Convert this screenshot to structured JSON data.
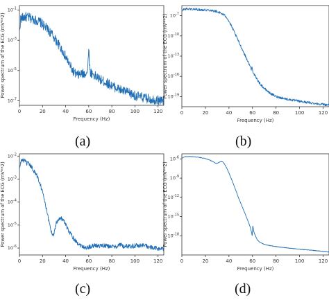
{
  "chart_data": [
    {
      "type": "line",
      "panel_label": "(a)",
      "ylabel": "Power spectrum of the ECG (mV**2)",
      "xlabel": "Frequency (Hz)",
      "xlim": [
        0,
        125
      ],
      "ylog": true,
      "ylim_log10": [
        -7.3,
        -0.7
      ],
      "xticks": [
        0,
        20,
        40,
        60,
        80,
        100,
        120
      ],
      "xtick_labels": [
        "0",
        "20",
        "40",
        "60",
        "80",
        "100",
        "120"
      ],
      "yticks_log10": [
        -1,
        -3,
        -5,
        -7
      ],
      "ytick_labels": [
        "10^-1",
        "10^-3",
        "10^-5",
        "10^-7"
      ],
      "line_color": "#1f6db5",
      "noise": 0.32,
      "series": [
        {
          "x": [
            0,
            1,
            3,
            5,
            8,
            12,
            15,
            18,
            22,
            26,
            30,
            34,
            38,
            42,
            46,
            48,
            50,
            53,
            56,
            58,
            59,
            59.6,
            60,
            60.4,
            61,
            63,
            66,
            70,
            75,
            80,
            85,
            90,
            95,
            100,
            105,
            110,
            115,
            120,
            125
          ],
          "y_log10": [
            -2.5,
            -1.6,
            -1.5,
            -1.45,
            -1.5,
            -1.6,
            -1.7,
            -1.8,
            -2.1,
            -2.4,
            -2.8,
            -3.3,
            -3.8,
            -4.4,
            -5.0,
            -5.2,
            -5.3,
            -5.25,
            -5.2,
            -5.15,
            -5.1,
            -4.0,
            -3.4,
            -4.2,
            -5.1,
            -5.2,
            -5.4,
            -5.6,
            -5.8,
            -6.0,
            -6.2,
            -6.35,
            -6.5,
            -6.65,
            -6.75,
            -6.85,
            -6.9,
            -6.95,
            -7.0
          ]
        }
      ]
    },
    {
      "type": "line",
      "panel_label": "(b)",
      "ylabel": "Power spectrum of the ECG (mV**2)",
      "xlabel": "Frequency (Hz)",
      "xlim": [
        0,
        125
      ],
      "ylog": true,
      "ylim_log10": [
        -20.5,
        -5.5
      ],
      "xticks": [
        0,
        20,
        40,
        60,
        80,
        100,
        120
      ],
      "xtick_labels": [
        "0",
        "20",
        "40",
        "60",
        "80",
        "100",
        "120"
      ],
      "yticks_log10": [
        -7,
        -10,
        -13,
        -16,
        -19
      ],
      "ytick_labels": [
        "10^-7",
        "10^-10",
        "10^-13",
        "10^-16",
        "10^-19"
      ],
      "line_color": "#1f6db5",
      "noise": 0.18,
      "series": [
        {
          "x": [
            0,
            1,
            3,
            5,
            10,
            15,
            20,
            25,
            30,
            35,
            38,
            42,
            46,
            50,
            54,
            58,
            59,
            59.8,
            60.3,
            61,
            63,
            66,
            70,
            75,
            80,
            90,
            100,
            110,
            120,
            125
          ],
          "y_log10": [
            -6.5,
            -6.1,
            -6.0,
            -6.0,
            -6.05,
            -6.1,
            -6.15,
            -6.2,
            -6.4,
            -6.8,
            -7.2,
            -8.5,
            -10.0,
            -11.5,
            -13.0,
            -14.5,
            -15.0,
            -14.5,
            -15.3,
            -15.6,
            -16.2,
            -17.0,
            -17.8,
            -18.5,
            -19.0,
            -19.4,
            -19.7,
            -19.95,
            -20.15,
            -20.25
          ]
        }
      ]
    },
    {
      "type": "line",
      "panel_label": "(c)",
      "ylabel": "Power spectrum of the ECG (mV**2)",
      "xlabel": "Frequency (Hz)",
      "xlim": [
        0,
        125
      ],
      "ylog": true,
      "ylim_log10": [
        -6.3,
        -1.9
      ],
      "xticks": [
        0,
        20,
        40,
        60,
        80,
        100,
        120
      ],
      "xtick_labels": [
        "0",
        "20",
        "40",
        "60",
        "80",
        "100",
        "120"
      ],
      "yticks_log10": [
        -2,
        -3,
        -4,
        -5,
        -6
      ],
      "ytick_labels": [
        "10^-2",
        "10^-3",
        "10^-4",
        "10^-5",
        "10^-6"
      ],
      "line_color": "#1f6db5",
      "noise": 0.1,
      "series": [
        {
          "x": [
            0,
            1,
            2,
            4,
            6,
            8,
            10,
            12,
            14,
            16,
            18,
            20,
            22,
            24,
            26,
            27,
            28,
            29,
            30,
            31,
            32,
            34,
            36,
            38,
            40,
            44,
            48,
            52,
            56,
            58,
            62,
            66,
            70,
            74,
            78,
            82,
            86,
            88,
            90,
            92,
            96,
            100,
            104,
            108,
            112,
            116,
            120,
            125
          ],
          "y_log10": [
            -2.6,
            -2.3,
            -2.15,
            -2.2,
            -2.3,
            -2.35,
            -2.45,
            -2.6,
            -2.75,
            -2.95,
            -3.2,
            -3.55,
            -4.0,
            -4.5,
            -4.9,
            -5.15,
            -5.35,
            -5.45,
            -5.35,
            -5.1,
            -4.9,
            -4.72,
            -4.7,
            -4.8,
            -5.0,
            -5.35,
            -5.65,
            -5.85,
            -5.95,
            -6.0,
            -5.92,
            -5.88,
            -5.9,
            -5.9,
            -5.92,
            -5.95,
            -5.88,
            -5.85,
            -5.95,
            -5.92,
            -5.92,
            -5.9,
            -5.88,
            -5.88,
            -5.95,
            -6.0,
            -6.02,
            -6.05
          ]
        }
      ]
    },
    {
      "type": "line",
      "panel_label": "(d)",
      "ylabel": "Power spectrum of the ECG (mV**2)",
      "xlabel": "Frequency (Hz)",
      "xlim": [
        0,
        125
      ],
      "ylog": true,
      "ylim_log10": [
        -21.0,
        -5.2
      ],
      "xticks": [
        0,
        20,
        40,
        60,
        80,
        100,
        120
      ],
      "xtick_labels": [
        "0",
        "20",
        "40",
        "60",
        "80",
        "100",
        "120"
      ],
      "yticks_log10": [
        -6,
        -9,
        -12,
        -15,
        -18
      ],
      "ytick_labels": [
        "10^-6",
        "10^-9",
        "10^-12",
        "10^-15",
        "10^-18"
      ],
      "line_color": "#1f6db5",
      "noise": 0.04,
      "series": [
        {
          "x": [
            0,
            1,
            3,
            5,
            8,
            12,
            16,
            20,
            24,
            27,
            29,
            31,
            33,
            35,
            37,
            40,
            44,
            48,
            52,
            56,
            58,
            59,
            59.8,
            60.3,
            61,
            62,
            64,
            66,
            70,
            75,
            80,
            90,
            100,
            110,
            120,
            125
          ],
          "y_log10": [
            -6.0,
            -5.75,
            -5.65,
            -5.62,
            -5.65,
            -5.7,
            -5.8,
            -5.95,
            -6.2,
            -6.5,
            -6.7,
            -6.6,
            -6.4,
            -6.5,
            -7.0,
            -8.2,
            -10.0,
            -12.0,
            -13.8,
            -15.6,
            -16.6,
            -17.3,
            -18.0,
            -16.3,
            -17.3,
            -17.8,
            -18.6,
            -19.0,
            -19.35,
            -19.55,
            -19.7,
            -19.9,
            -20.1,
            -20.25,
            -20.45,
            -20.55
          ]
        }
      ]
    }
  ]
}
